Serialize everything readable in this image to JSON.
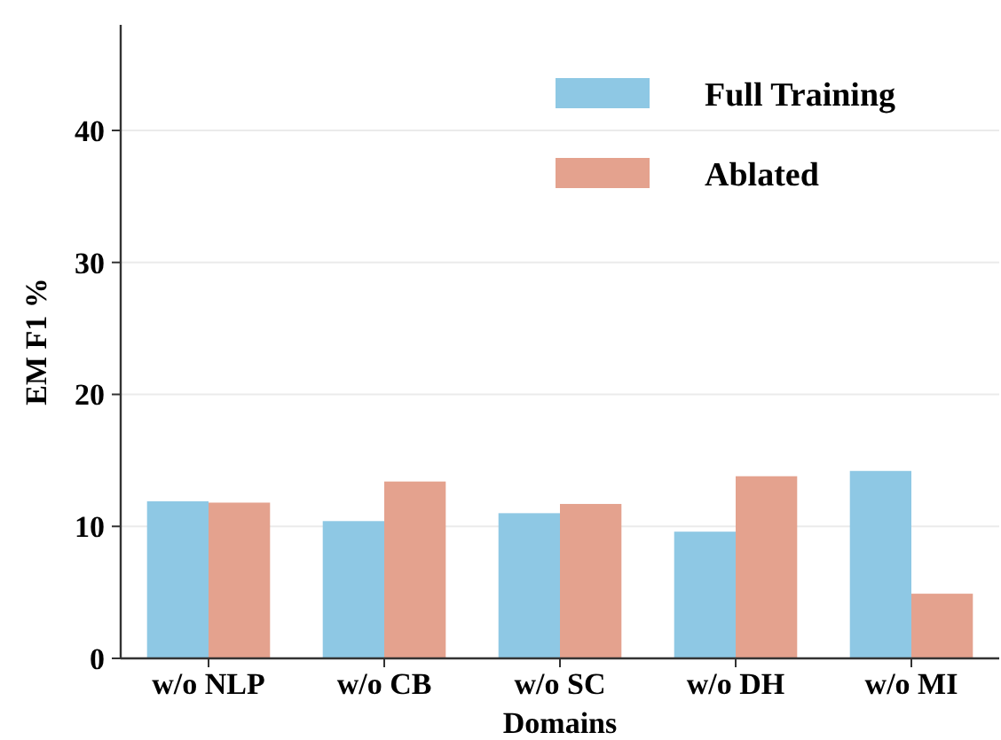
{
  "chart_data": {
    "type": "bar",
    "xlabel": "Domains",
    "ylabel": "EM F1 %",
    "categories": [
      "w/o NLP",
      "w/o CB",
      "w/o SC",
      "w/o DH",
      "w/o MI"
    ],
    "series": [
      {
        "name": "Full Training",
        "color": "#8ec8e4",
        "values": [
          11.9,
          10.4,
          11.0,
          9.6,
          14.2
        ]
      },
      {
        "name": "Ablated",
        "color": "#e4a28e",
        "values": [
          11.8,
          13.4,
          11.7,
          13.8,
          4.9
        ]
      }
    ],
    "ylim": [
      0,
      48
    ],
    "yticks": [
      0,
      10,
      20,
      30,
      40
    ],
    "grid": "y",
    "legend": "top right"
  }
}
